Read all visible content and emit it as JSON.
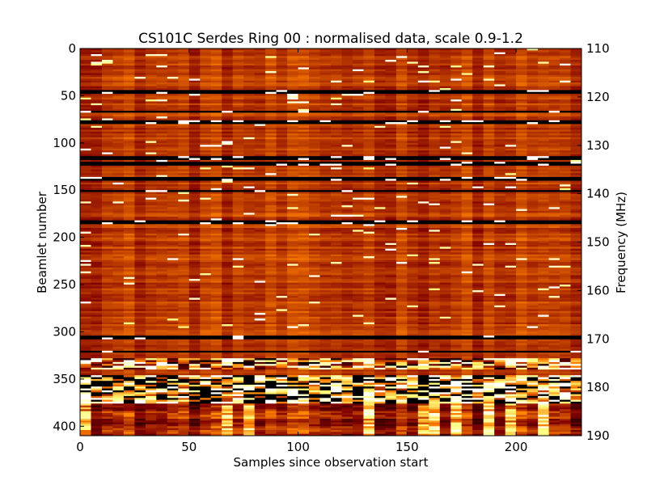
{
  "chart_data": {
    "type": "heatmap",
    "title": "CS101C Serdes Ring 00 : normalised data, scale 0.9-1.2",
    "xlabel": "Samples since observation start",
    "ylabel": "Beamlet number",
    "y2label": "Frequency (MHz)",
    "xlim": [
      0,
      230
    ],
    "ylim": [
      410,
      0
    ],
    "y2lim": [
      190,
      110
    ],
    "zlim": [
      0.9,
      1.2
    ],
    "colormap": "afmhot",
    "xticks": [
      0,
      50,
      100,
      150,
      200
    ],
    "yticks": [
      0,
      50,
      100,
      150,
      200,
      250,
      300,
      350,
      400
    ],
    "y2ticks": [
      110,
      120,
      130,
      140,
      150,
      160,
      170,
      180,
      190
    ],
    "baseline_value": 1.01,
    "dark_beamlets": [
      45,
      66,
      77,
      115,
      121,
      137,
      150,
      183,
      305,
      320,
      330,
      337
    ],
    "noisy_beamlet_ranges": [
      [
        328,
        340
      ],
      [
        345,
        375
      ]
    ],
    "bright_band_range": [
      375,
      410
    ]
  }
}
